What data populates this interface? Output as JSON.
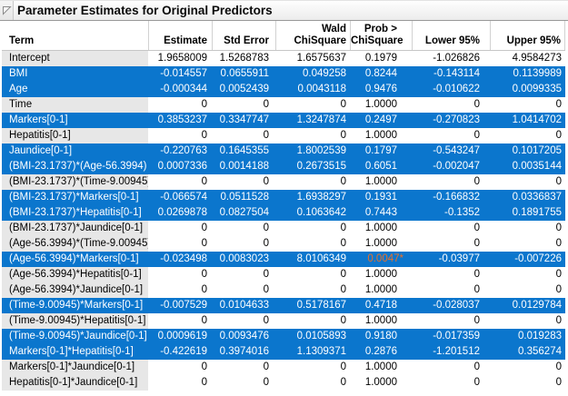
{
  "panel": {
    "title": "Parameter Estimates for Original Predictors",
    "disclosure_icon": "open-disclosure-triangle"
  },
  "colors": {
    "selection_blue": "#0b76cd",
    "significant_orange": "#e8702a",
    "term_cell_gray": "#e7e7e7"
  },
  "table": {
    "columns": [
      {
        "key": "term",
        "label_lines": [
          "Term"
        ]
      },
      {
        "key": "estimate",
        "label_lines": [
          "Estimate"
        ]
      },
      {
        "key": "std_error",
        "label_lines": [
          "Std Error"
        ]
      },
      {
        "key": "wald",
        "label_lines": [
          "Wald",
          "ChiSquare"
        ]
      },
      {
        "key": "prob",
        "label_lines": [
          "Prob >",
          "ChiSquare"
        ]
      },
      {
        "key": "lower",
        "label_lines": [
          "Lower 95%"
        ]
      },
      {
        "key": "upper",
        "label_lines": [
          "Upper 95%"
        ]
      }
    ],
    "rows": [
      {
        "term": "Intercept",
        "estimate": "1.9658009",
        "std_error": "1.5268783",
        "wald": "1.6575637",
        "prob": "0.1979",
        "lower": "-1.026826",
        "upper": "4.9584273",
        "highlighted": false,
        "prob_significant": false
      },
      {
        "term": "BMI",
        "estimate": "-0.014557",
        "std_error": "0.0655911",
        "wald": "0.049258",
        "prob": "0.8244",
        "lower": "-0.143114",
        "upper": "0.1139989",
        "highlighted": true,
        "prob_significant": false
      },
      {
        "term": "Age",
        "estimate": "-0.000344",
        "std_error": "0.0052439",
        "wald": "0.0043118",
        "prob": "0.9476",
        "lower": "-0.010622",
        "upper": "0.0099335",
        "highlighted": true,
        "prob_significant": false
      },
      {
        "term": "Time",
        "estimate": "0",
        "std_error": "0",
        "wald": "0",
        "prob": "1.0000",
        "lower": "0",
        "upper": "0",
        "highlighted": false,
        "prob_significant": false
      },
      {
        "term": "Markers[0-1]",
        "estimate": "0.3853237",
        "std_error": "0.3347747",
        "wald": "1.3247874",
        "prob": "0.2497",
        "lower": "-0.270823",
        "upper": "1.0414702",
        "highlighted": true,
        "prob_significant": false
      },
      {
        "term": "Hepatitis[0-1]",
        "estimate": "0",
        "std_error": "0",
        "wald": "0",
        "prob": "1.0000",
        "lower": "0",
        "upper": "0",
        "highlighted": false,
        "prob_significant": false
      },
      {
        "term": "Jaundice[0-1]",
        "estimate": "-0.220763",
        "std_error": "0.1645355",
        "wald": "1.8002539",
        "prob": "0.1797",
        "lower": "-0.543247",
        "upper": "0.1017205",
        "highlighted": true,
        "prob_significant": false
      },
      {
        "term": "(BMI-23.1737)*(Age-56.3994)",
        "estimate": "0.0007336",
        "std_error": "0.0014188",
        "wald": "0.2673515",
        "prob": "0.6051",
        "lower": "-0.002047",
        "upper": "0.0035144",
        "highlighted": true,
        "prob_significant": false
      },
      {
        "term": "(BMI-23.1737)*(Time-9.00945)",
        "estimate": "0",
        "std_error": "0",
        "wald": "0",
        "prob": "1.0000",
        "lower": "0",
        "upper": "0",
        "highlighted": false,
        "prob_significant": false
      },
      {
        "term": "(BMI-23.1737)*Markers[0-1]",
        "estimate": "-0.066574",
        "std_error": "0.0511528",
        "wald": "1.6938297",
        "prob": "0.1931",
        "lower": "-0.166832",
        "upper": "0.0336837",
        "highlighted": true,
        "prob_significant": false
      },
      {
        "term": "(BMI-23.1737)*Hepatitis[0-1]",
        "estimate": "0.0269878",
        "std_error": "0.0827504",
        "wald": "0.1063642",
        "prob": "0.7443",
        "lower": "-0.1352",
        "upper": "0.1891755",
        "highlighted": true,
        "prob_significant": false
      },
      {
        "term": "(BMI-23.1737)*Jaundice[0-1]",
        "estimate": "0",
        "std_error": "0",
        "wald": "0",
        "prob": "1.0000",
        "lower": "0",
        "upper": "0",
        "highlighted": false,
        "prob_significant": false
      },
      {
        "term": "(Age-56.3994)*(Time-9.00945)",
        "estimate": "0",
        "std_error": "0",
        "wald": "0",
        "prob": "1.0000",
        "lower": "0",
        "upper": "0",
        "highlighted": false,
        "prob_significant": false
      },
      {
        "term": "(Age-56.3994)*Markers[0-1]",
        "estimate": "-0.023498",
        "std_error": "0.0083023",
        "wald": "8.0106349",
        "prob": "0.0047*",
        "lower": "-0.03977",
        "upper": "-0.007226",
        "highlighted": true,
        "prob_significant": true
      },
      {
        "term": "(Age-56.3994)*Hepatitis[0-1]",
        "estimate": "0",
        "std_error": "0",
        "wald": "0",
        "prob": "1.0000",
        "lower": "0",
        "upper": "0",
        "highlighted": false,
        "prob_significant": false
      },
      {
        "term": "(Age-56.3994)*Jaundice[0-1]",
        "estimate": "0",
        "std_error": "0",
        "wald": "0",
        "prob": "1.0000",
        "lower": "0",
        "upper": "0",
        "highlighted": false,
        "prob_significant": false
      },
      {
        "term": "(Time-9.00945)*Markers[0-1]",
        "estimate": "-0.007529",
        "std_error": "0.0104633",
        "wald": "0.5178167",
        "prob": "0.4718",
        "lower": "-0.028037",
        "upper": "0.0129784",
        "highlighted": true,
        "prob_significant": false
      },
      {
        "term": "(Time-9.00945)*Hepatitis[0-1]",
        "estimate": "0",
        "std_error": "0",
        "wald": "0",
        "prob": "1.0000",
        "lower": "0",
        "upper": "0",
        "highlighted": false,
        "prob_significant": false
      },
      {
        "term": "(Time-9.00945)*Jaundice[0-1]",
        "estimate": "0.0009619",
        "std_error": "0.0093476",
        "wald": "0.0105893",
        "prob": "0.9180",
        "lower": "-0.017359",
        "upper": "0.019283",
        "highlighted": true,
        "prob_significant": false
      },
      {
        "term": "Markers[0-1]*Hepatitis[0-1]",
        "estimate": "-0.422619",
        "std_error": "0.3974016",
        "wald": "1.1309371",
        "prob": "0.2876",
        "lower": "-1.201512",
        "upper": "0.356274",
        "highlighted": true,
        "prob_significant": false
      },
      {
        "term": "Markers[0-1]*Jaundice[0-1]",
        "estimate": "0",
        "std_error": "0",
        "wald": "0",
        "prob": "1.0000",
        "lower": "0",
        "upper": "0",
        "highlighted": false,
        "prob_significant": false
      },
      {
        "term": "Hepatitis[0-1]*Jaundice[0-1]",
        "estimate": "0",
        "std_error": "0",
        "wald": "0",
        "prob": "1.0000",
        "lower": "0",
        "upper": "0",
        "highlighted": false,
        "prob_significant": false
      }
    ]
  }
}
